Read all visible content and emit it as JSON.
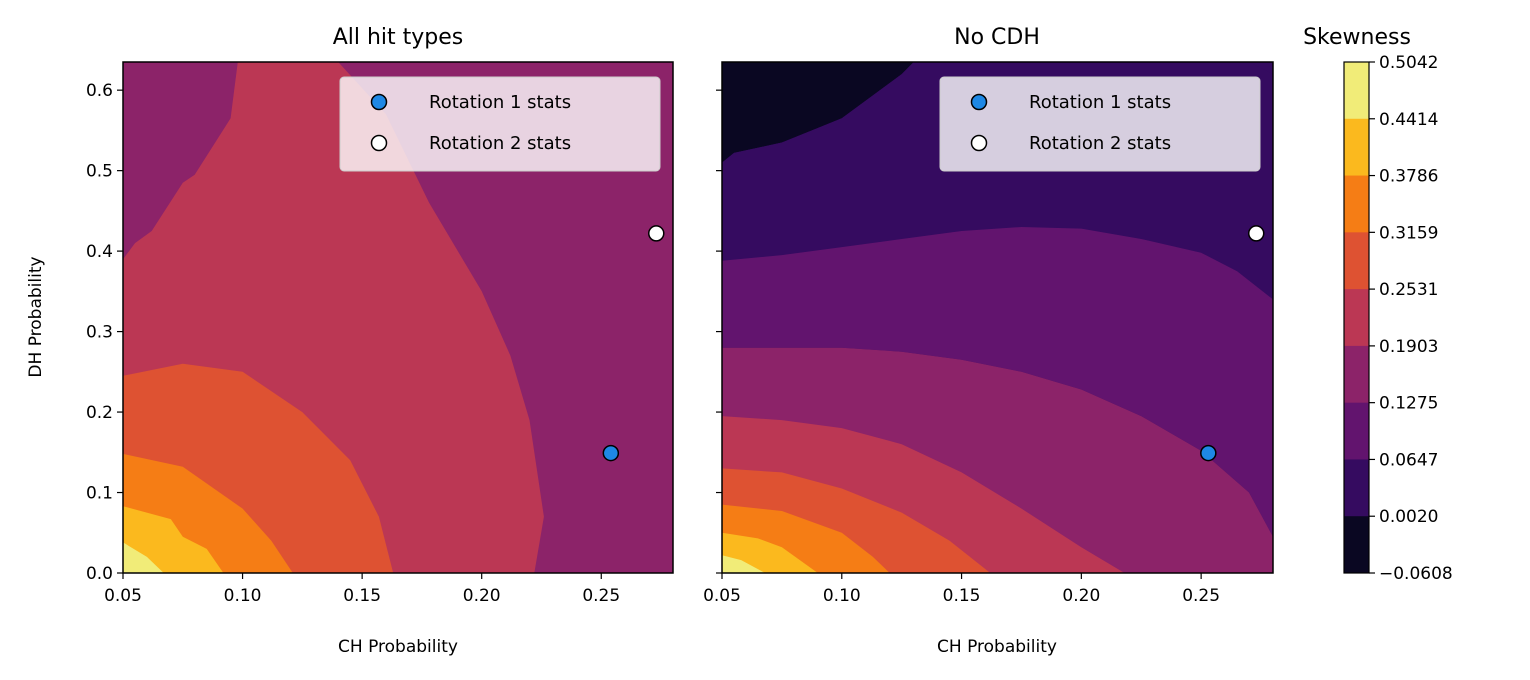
{
  "chart_data": [
    {
      "type": "contour",
      "title": "All hit types",
      "xlabel": "CH Probability",
      "ylabel": "DH Probability",
      "xlim": [
        0.05,
        0.28
      ],
      "ylim": [
        0.0,
        0.635
      ],
      "xticks": [
        "0.05",
        "0.10",
        "0.15",
        "0.20",
        "0.25"
      ],
      "yticks": [
        "0.0",
        "0.1",
        "0.2",
        "0.3",
        "0.4",
        "0.5",
        "0.6"
      ],
      "legend_position": "top-right",
      "contour_regions": [
        {
          "level_range": [
            0.1275,
            0.1903
          ],
          "boundary": [
            [
              0.05,
              0.39
            ],
            [
              0.055,
              0.41
            ],
            [
              0.062,
              0.425
            ],
            [
              0.075,
              0.485
            ],
            [
              0.08,
              0.495
            ],
            [
              0.095,
              0.565
            ],
            [
              0.098,
              0.635
            ],
            [
              0.05,
              0.635
            ]
          ]
        },
        {
          "level_range": [
            0.1903,
            0.2531
          ],
          "boundary": [
            [
              0.05,
              0.0
            ],
            [
              0.05,
              0.39
            ],
            [
              0.055,
              0.41
            ],
            [
              0.062,
              0.425
            ],
            [
              0.075,
              0.485
            ],
            [
              0.08,
              0.495
            ],
            [
              0.095,
              0.565
            ],
            [
              0.098,
              0.635
            ],
            [
              0.14,
              0.635
            ],
            [
              0.16,
              0.57
            ],
            [
              0.178,
              0.46
            ],
            [
              0.2,
              0.35
            ],
            [
              0.212,
              0.27
            ],
            [
              0.22,
              0.19
            ],
            [
              0.226,
              0.07
            ],
            [
              0.222,
              0.0
            ]
          ]
        },
        {
          "level_range": [
            0.2531,
            0.3159
          ],
          "boundary": [
            [
              0.05,
              0.0
            ],
            [
              0.05,
              0.245
            ],
            [
              0.075,
              0.26
            ],
            [
              0.1,
              0.25
            ],
            [
              0.125,
              0.2
            ],
            [
              0.145,
              0.14
            ],
            [
              0.157,
              0.07
            ],
            [
              0.163,
              0.0
            ]
          ]
        },
        {
          "level_range": [
            0.3159,
            0.3786
          ],
          "boundary": [
            [
              0.05,
              0.0
            ],
            [
              0.05,
              0.148
            ],
            [
              0.075,
              0.132
            ],
            [
              0.1,
              0.08
            ],
            [
              0.112,
              0.04
            ],
            [
              0.121,
              0.0
            ]
          ]
        },
        {
          "level_range": [
            0.3786,
            0.4414
          ],
          "boundary": [
            [
              0.05,
              0.0
            ],
            [
              0.05,
              0.083
            ],
            [
              0.07,
              0.067
            ],
            [
              0.075,
              0.045
            ],
            [
              0.085,
              0.03
            ],
            [
              0.092,
              0.0
            ]
          ]
        },
        {
          "level_range": [
            0.4414,
            0.5042
          ],
          "boundary": [
            [
              0.05,
              0.0
            ],
            [
              0.05,
              0.038
            ],
            [
              0.06,
              0.02
            ],
            [
              0.067,
              0.0
            ]
          ]
        }
      ],
      "background_level_range": [
        0.1275,
        0.1903
      ],
      "series": [
        {
          "name": "Rotation 1 stats",
          "x": [
            0.254
          ],
          "y": [
            0.149
          ],
          "color": "#1e88e5"
        },
        {
          "name": "Rotation 2 stats",
          "x": [
            0.273
          ],
          "y": [
            0.422
          ],
          "color": "#ffffff"
        }
      ]
    },
    {
      "type": "contour",
      "title": "No CDH",
      "xlabel": "CH Probability",
      "ylabel": "",
      "xlim": [
        0.05,
        0.28
      ],
      "ylim": [
        0.0,
        0.635
      ],
      "xticks": [
        "0.05",
        "0.10",
        "0.15",
        "0.20",
        "0.25"
      ],
      "legend_position": "top-right",
      "contour_regions": [
        {
          "level_range": [
            -0.0608,
            0.002
          ],
          "boundary": [
            [
              0.05,
              0.51
            ],
            [
              0.055,
              0.522
            ],
            [
              0.075,
              0.535
            ],
            [
              0.1,
              0.565
            ],
            [
              0.125,
              0.62
            ],
            [
              0.13,
              0.635
            ],
            [
              0.05,
              0.635
            ]
          ]
        },
        {
          "level_range": [
            0.002,
            0.0647
          ],
          "boundary": [
            [
              0.05,
              0.388
            ],
            [
              0.075,
              0.395
            ],
            [
              0.1,
              0.405
            ],
            [
              0.125,
              0.415
            ],
            [
              0.15,
              0.425
            ],
            [
              0.175,
              0.43
            ],
            [
              0.2,
              0.428
            ],
            [
              0.225,
              0.415
            ],
            [
              0.25,
              0.398
            ],
            [
              0.265,
              0.375
            ],
            [
              0.28,
              0.34
            ],
            [
              0.28,
              0.62
            ],
            [
              0.27,
              0.635
            ],
            [
              0.13,
              0.635
            ],
            [
              0.125,
              0.62
            ],
            [
              0.1,
              0.565
            ],
            [
              0.075,
              0.535
            ],
            [
              0.055,
              0.522
            ],
            [
              0.05,
              0.51
            ]
          ]
        },
        {
          "level_range": [
            0.0647,
            0.1275
          ],
          "boundary": [
            [
              0.05,
              0.28
            ],
            [
              0.075,
              0.28
            ],
            [
              0.1,
              0.28
            ],
            [
              0.125,
              0.275
            ],
            [
              0.15,
              0.265
            ],
            [
              0.175,
              0.25
            ],
            [
              0.2,
              0.228
            ],
            [
              0.225,
              0.195
            ],
            [
              0.25,
              0.152
            ],
            [
              0.27,
              0.1
            ],
            [
              0.28,
              0.045
            ],
            [
              0.28,
              0.34
            ],
            [
              0.265,
              0.375
            ],
            [
              0.25,
              0.398
            ],
            [
              0.225,
              0.415
            ],
            [
              0.2,
              0.428
            ],
            [
              0.175,
              0.43
            ],
            [
              0.15,
              0.425
            ],
            [
              0.125,
              0.415
            ],
            [
              0.1,
              0.405
            ],
            [
              0.075,
              0.395
            ],
            [
              0.05,
              0.388
            ]
          ]
        },
        {
          "level_range": [
            0.1275,
            0.1903
          ],
          "boundary": [
            [
              0.05,
              0.0
            ],
            [
              0.05,
              0.28
            ],
            [
              0.075,
              0.28
            ],
            [
              0.1,
              0.28
            ],
            [
              0.125,
              0.275
            ],
            [
              0.15,
              0.265
            ],
            [
              0.175,
              0.25
            ],
            [
              0.2,
              0.228
            ],
            [
              0.225,
              0.195
            ],
            [
              0.25,
              0.152
            ],
            [
              0.27,
              0.1
            ],
            [
              0.28,
              0.045
            ],
            [
              0.28,
              0.0
            ]
          ]
        },
        {
          "level_range": [
            0.1903,
            0.2531
          ],
          "boundary": [
            [
              0.05,
              0.0
            ],
            [
              0.05,
              0.195
            ],
            [
              0.075,
              0.19
            ],
            [
              0.1,
              0.18
            ],
            [
              0.125,
              0.16
            ],
            [
              0.15,
              0.125
            ],
            [
              0.175,
              0.08
            ],
            [
              0.2,
              0.032
            ],
            [
              0.218,
              0.0
            ]
          ]
        },
        {
          "level_range": [
            0.2531,
            0.3159
          ],
          "boundary": [
            [
              0.05,
              0.0
            ],
            [
              0.05,
              0.13
            ],
            [
              0.075,
              0.125
            ],
            [
              0.1,
              0.105
            ],
            [
              0.125,
              0.075
            ],
            [
              0.145,
              0.04
            ],
            [
              0.162,
              0.0
            ]
          ]
        },
        {
          "level_range": [
            0.3159,
            0.3786
          ],
          "boundary": [
            [
              0.05,
              0.0
            ],
            [
              0.05,
              0.085
            ],
            [
              0.075,
              0.077
            ],
            [
              0.1,
              0.05
            ],
            [
              0.113,
              0.02
            ],
            [
              0.12,
              0.0
            ]
          ]
        },
        {
          "level_range": [
            0.3786,
            0.4414
          ],
          "boundary": [
            [
              0.05,
              0.0
            ],
            [
              0.05,
              0.05
            ],
            [
              0.065,
              0.043
            ],
            [
              0.075,
              0.032
            ],
            [
              0.09,
              0.0
            ]
          ]
        },
        {
          "level_range": [
            0.4414,
            0.5042
          ],
          "boundary": [
            [
              0.05,
              0.0
            ],
            [
              0.05,
              0.022
            ],
            [
              0.058,
              0.016
            ],
            [
              0.068,
              0.0
            ]
          ]
        }
      ],
      "background_level_range": [
        0.002,
        0.0647
      ],
      "series": [
        {
          "name": "Rotation 1 stats",
          "x": [
            0.253
          ],
          "y": [
            0.149
          ],
          "color": "#1e88e5"
        },
        {
          "name": "Rotation 2 stats",
          "x": [
            0.273
          ],
          "y": [
            0.422
          ],
          "color": "#ffffff"
        }
      ]
    }
  ],
  "colorbar": {
    "title": "Skewness",
    "levels": [
      "0.5042",
      "0.4414",
      "0.3786",
      "0.3159",
      "0.2531",
      "0.1903",
      "0.1275",
      "0.0647",
      "0.0020",
      "−0.0608"
    ],
    "colors": [
      "#f1ec78",
      "#fbb91e",
      "#f57d15",
      "#de5232",
      "#bb3754",
      "#8c2369",
      "#62146e",
      "#350b60",
      "#0a0722"
    ]
  }
}
